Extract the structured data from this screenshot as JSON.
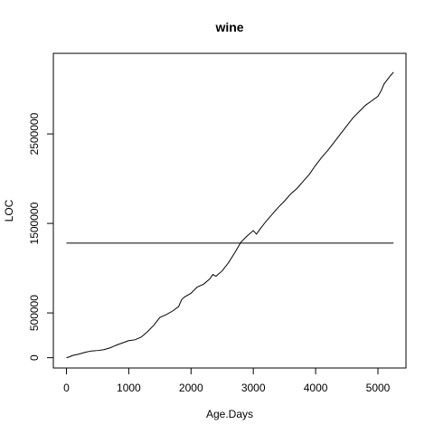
{
  "chart_data": {
    "type": "line",
    "title": "wine",
    "xlabel": "Age.Days",
    "ylabel": "LOC",
    "xlim": [
      -210,
      5450
    ],
    "ylim": [
      -115000,
      3400000
    ],
    "x_ticks": [
      0,
      1000,
      2000,
      3000,
      4000,
      5000
    ],
    "y_ticks": [
      0,
      500000,
      1500000,
      2500000
    ],
    "grid": false,
    "legend": "none",
    "series": [
      {
        "color": "#000000",
        "points": [
          [
            0,
            0
          ],
          [
            50,
            10000
          ],
          [
            100,
            25000
          ],
          [
            200,
            40000
          ],
          [
            300,
            60000
          ],
          [
            400,
            75000
          ],
          [
            500,
            80000
          ],
          [
            600,
            90000
          ],
          [
            700,
            110000
          ],
          [
            800,
            140000
          ],
          [
            900,
            165000
          ],
          [
            1000,
            190000
          ],
          [
            1100,
            200000
          ],
          [
            1200,
            230000
          ],
          [
            1300,
            290000
          ],
          [
            1400,
            360000
          ],
          [
            1500,
            450000
          ],
          [
            1600,
            480000
          ],
          [
            1700,
            520000
          ],
          [
            1800,
            570000
          ],
          [
            1850,
            650000
          ],
          [
            1900,
            680000
          ],
          [
            2000,
            720000
          ],
          [
            2100,
            790000
          ],
          [
            2200,
            820000
          ],
          [
            2300,
            880000
          ],
          [
            2350,
            930000
          ],
          [
            2400,
            910000
          ],
          [
            2500,
            970000
          ],
          [
            2600,
            1060000
          ],
          [
            2700,
            1170000
          ],
          [
            2750,
            1230000
          ],
          [
            2800,
            1290000
          ],
          [
            2900,
            1360000
          ],
          [
            3000,
            1420000
          ],
          [
            3050,
            1380000
          ],
          [
            3100,
            1430000
          ],
          [
            3200,
            1520000
          ],
          [
            3300,
            1600000
          ],
          [
            3400,
            1680000
          ],
          [
            3500,
            1750000
          ],
          [
            3600,
            1830000
          ],
          [
            3700,
            1890000
          ],
          [
            3800,
            1970000
          ],
          [
            3900,
            2050000
          ],
          [
            4000,
            2150000
          ],
          [
            4100,
            2240000
          ],
          [
            4200,
            2320000
          ],
          [
            4300,
            2410000
          ],
          [
            4400,
            2500000
          ],
          [
            4500,
            2590000
          ],
          [
            4600,
            2680000
          ],
          [
            4700,
            2750000
          ],
          [
            4800,
            2820000
          ],
          [
            4900,
            2870000
          ],
          [
            5000,
            2920000
          ],
          [
            5050,
            2980000
          ],
          [
            5100,
            3060000
          ],
          [
            5200,
            3150000
          ],
          [
            5250,
            3190000
          ]
        ]
      },
      {
        "color": "#000000",
        "points": [
          [
            0,
            1280000
          ],
          [
            5250,
            1280000
          ]
        ]
      }
    ]
  }
}
